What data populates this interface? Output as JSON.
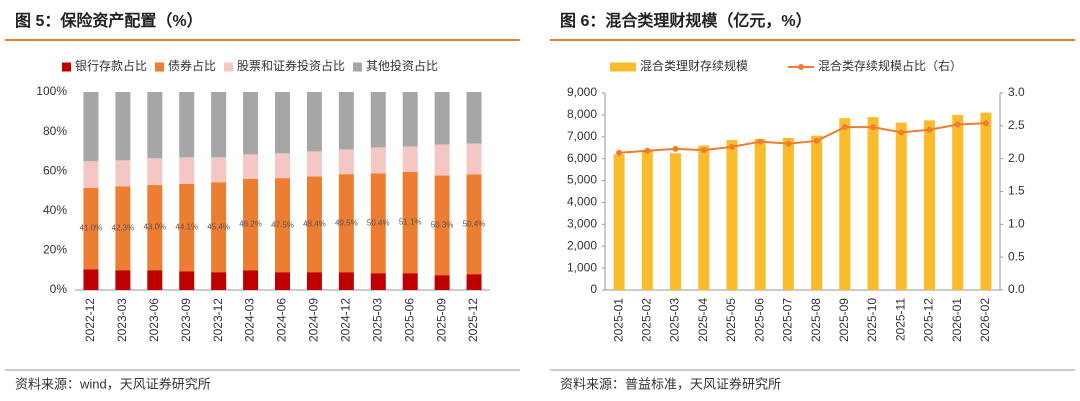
{
  "chart_data": [
    {
      "type": "bar",
      "stacked": true,
      "title": "图 5：保险资产配置（%）",
      "source": "资料来源：wind，天风证券研究所",
      "categories": [
        "2022-12",
        "2023-03",
        "2023-06",
        "2023-09",
        "2023-12",
        "2024-03",
        "2024-06",
        "2024-09",
        "2024-12",
        "2025-03",
        "2025-06",
        "2025-09",
        "2025-12"
      ],
      "series": [
        {
          "name": "银行存款占比",
          "color": "#c00000",
          "values": [
            10.5,
            10,
            10,
            9.5,
            9,
            10,
            9,
            9,
            9,
            8.5,
            8.5,
            7.5,
            8
          ]
        },
        {
          "name": "债券占比",
          "color": "#ed7d31",
          "values": [
            41.0,
            42.3,
            43.0,
            44.1,
            45.4,
            46.2,
            47.5,
            48.4,
            49.5,
            50.4,
            51.1,
            50.3,
            50.4
          ],
          "value_labels": [
            "41.0%",
            "42.3%",
            "43.0%",
            "44.1%",
            "45.4%",
            "46.2%",
            "47.5%",
            "48.4%",
            "49.5%",
            "50.4%",
            "51.1%",
            "50.3%",
            "50.4%"
          ]
        },
        {
          "name": "股票和证券投资占比",
          "color": "#f4c7c3",
          "values": [
            13.5,
            13.2,
            13.5,
            13.4,
            12.6,
            12.3,
            12.5,
            12.6,
            12.5,
            13.1,
            12.9,
            15.7,
            15.6
          ]
        },
        {
          "name": "其他投资占比",
          "color": "#a6a6a6",
          "values": [
            35,
            34.5,
            33.5,
            33,
            33,
            31.5,
            31,
            30,
            29,
            28,
            27.5,
            26.5,
            26
          ]
        }
      ],
      "ylim": [
        0,
        100
      ],
      "yticks": [
        {
          "value": 0,
          "label": "0%"
        },
        {
          "value": 20,
          "label": "20%"
        },
        {
          "value": 40,
          "label": "40%"
        },
        {
          "value": 60,
          "label": "60%"
        },
        {
          "value": 80,
          "label": "80%"
        },
        {
          "value": 100,
          "label": "100%"
        }
      ],
      "grid": false
    },
    {
      "type": "combo",
      "title": "图 6：混合类理财规模（亿元，%）",
      "source": "资料来源：普益标准，天风证券研究所",
      "categories": [
        "2025-01",
        "2025-02",
        "2025-03",
        "2025-04",
        "2025-05",
        "2025-06",
        "2025-07",
        "2025-08",
        "2025-09",
        "2025-10",
        "2025-11",
        "2025-12",
        "2026-01",
        "2026-02"
      ],
      "series": [
        {
          "name": "混合类理财存续规模",
          "color": "#fbbc2c",
          "type": "bar",
          "values": [
            6200,
            6350,
            6250,
            6600,
            6850,
            6900,
            6950,
            7050,
            7850,
            7900,
            7650,
            7750,
            8000,
            8100
          ]
        },
        {
          "name": "混合类存续规模占比（右）",
          "color": "#ed7d31",
          "type": "line",
          "axis": "y2",
          "values": [
            2.09,
            2.12,
            2.15,
            2.13,
            2.18,
            2.26,
            2.23,
            2.27,
            2.48,
            2.48,
            2.4,
            2.44,
            2.52,
            2.54
          ]
        }
      ],
      "ylim": [
        0,
        9000
      ],
      "yticks": [
        0,
        {
          "value": 1000,
          "label": "1,000"
        },
        {
          "value": 2000,
          "label": "2,000"
        },
        {
          "value": 3000,
          "label": "3,000"
        },
        {
          "value": 4000,
          "label": "4,000"
        },
        {
          "value": 5000,
          "label": "5,000"
        },
        {
          "value": 6000,
          "label": "6,000"
        },
        {
          "value": 7000,
          "label": "7,000"
        },
        {
          "value": 8000,
          "label": "8,000"
        },
        {
          "value": 9000,
          "label": "9,000"
        }
      ],
      "y2lim": [
        0,
        3
      ],
      "y2ticks": [
        {
          "value": 0,
          "label": "0.0"
        },
        0.5,
        {
          "value": 1,
          "label": "1.0"
        },
        1.5,
        {
          "value": 2,
          "label": "2.0"
        },
        2.5,
        {
          "value": 3,
          "label": "3.0"
        }
      ],
      "grid": false
    }
  ]
}
